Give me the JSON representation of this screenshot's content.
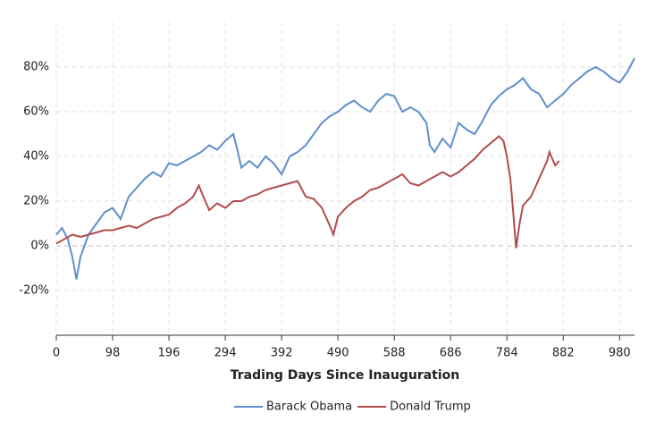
{
  "chart_data": {
    "type": "line",
    "xlabel": "Trading Days Since Inauguration",
    "xlim": [
      0,
      1006
    ],
    "ylim": [
      -40,
      100
    ],
    "xticks": [
      0,
      98,
      196,
      294,
      392,
      490,
      588,
      686,
      784,
      882,
      980
    ],
    "yticks": [
      {
        "value": -20,
        "label": "-20%"
      },
      {
        "value": 0,
        "label": "0%"
      },
      {
        "value": 20,
        "label": "20%"
      },
      {
        "value": 40,
        "label": "40%"
      },
      {
        "value": 60,
        "label": "60%"
      },
      {
        "value": 80,
        "label": "80%"
      }
    ],
    "grid": true,
    "legend": "bottom",
    "series": [
      {
        "name": "Barack Obama",
        "color": "#5f8fcb",
        "x": [
          0,
          10,
          20,
          28,
          35,
          42,
          56,
          70,
          84,
          98,
          112,
          126,
          140,
          154,
          168,
          182,
          196,
          210,
          224,
          238,
          252,
          266,
          280,
          294,
          308,
          315,
          322,
          336,
          350,
          364,
          378,
          392,
          406,
          420,
          434,
          448,
          462,
          476,
          490,
          504,
          518,
          532,
          546,
          560,
          574,
          588,
          602,
          616,
          630,
          644,
          650,
          658,
          672,
          686,
          700,
          714,
          728,
          742,
          756,
          770,
          784,
          798,
          812,
          826,
          840,
          854,
          868,
          882,
          896,
          910,
          924,
          938,
          952,
          966,
          980,
          994,
          1006
        ],
        "values": [
          5,
          8,
          3,
          -5,
          -15,
          -5,
          5,
          10,
          15,
          17,
          12,
          22,
          26,
          30,
          33,
          31,
          37,
          36,
          38,
          40,
          42,
          45,
          43,
          47,
          50,
          43,
          35,
          38,
          35,
          40,
          37,
          32,
          40,
          42,
          45,
          50,
          55,
          58,
          60,
          63,
          65,
          62,
          60,
          65,
          68,
          67,
          60,
          62,
          60,
          55,
          45,
          42,
          48,
          44,
          55,
          52,
          50,
          56,
          63,
          67,
          70,
          72,
          75,
          70,
          68,
          62,
          65,
          68,
          72,
          75,
          78,
          80,
          78,
          75,
          73,
          78,
          84
        ]
      },
      {
        "name": "Donald Trump",
        "color": "#b04c4c",
        "x": [
          0,
          14,
          28,
          42,
          56,
          70,
          84,
          98,
          112,
          126,
          140,
          154,
          168,
          182,
          196,
          210,
          224,
          238,
          248,
          256,
          266,
          280,
          294,
          308,
          322,
          336,
          350,
          364,
          378,
          392,
          406,
          420,
          434,
          448,
          462,
          476,
          482,
          490,
          504,
          518,
          532,
          546,
          560,
          574,
          588,
          602,
          616,
          630,
          644,
          658,
          672,
          686,
          700,
          714,
          728,
          742,
          756,
          770,
          778,
          784,
          790,
          796,
          800,
          806,
          812,
          826,
          840,
          854,
          858,
          868,
          875
        ],
        "values": [
          1,
          3,
          5,
          4,
          5,
          6,
          7,
          7,
          8,
          9,
          8,
          10,
          12,
          13,
          14,
          17,
          19,
          22,
          27,
          22,
          16,
          19,
          17,
          20,
          20,
          22,
          23,
          25,
          26,
          27,
          28,
          29,
          22,
          21,
          17,
          9,
          5,
          13,
          17,
          20,
          22,
          25,
          26,
          28,
          30,
          32,
          28,
          27,
          29,
          31,
          33,
          31,
          33,
          36,
          39,
          43,
          46,
          49,
          47,
          40,
          30,
          12,
          -1,
          10,
          18,
          22,
          30,
          38,
          42,
          36,
          38
        ]
      }
    ]
  }
}
